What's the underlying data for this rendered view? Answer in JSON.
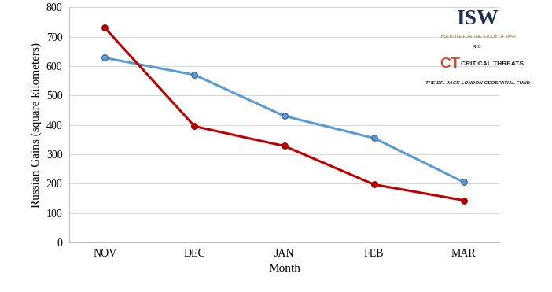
{
  "chart_data": {
    "type": "line",
    "x_label": "Month",
    "y_label": "Russian Gains (square kilometers)",
    "categories": [
      "NOV",
      "DEC",
      "JAN",
      "FEB",
      "MAR"
    ],
    "series": [
      {
        "color": "#5b9bd5",
        "marker": "o",
        "line_style": "solid",
        "values": [
          628,
          570,
          430,
          355,
          205
        ]
      },
      {
        "color": "#c00000",
        "marker": "o",
        "line_style": "solid",
        "values": [
          730,
          395,
          328,
          197,
          143
        ]
      }
    ],
    "ylim": [
      0,
      800
    ],
    "yticks": [
      0,
      100,
      200,
      300,
      400,
      500,
      600,
      700,
      800
    ],
    "grid": true,
    "annotations": [
      "ISW",
      "INSTITUTE FOR THE STUDY OF WAR",
      "AND",
      "CT",
      "CRITICAL THREATS",
      "THE DR. JACK LONDON GEOSPATIAL FUND"
    ]
  }
}
